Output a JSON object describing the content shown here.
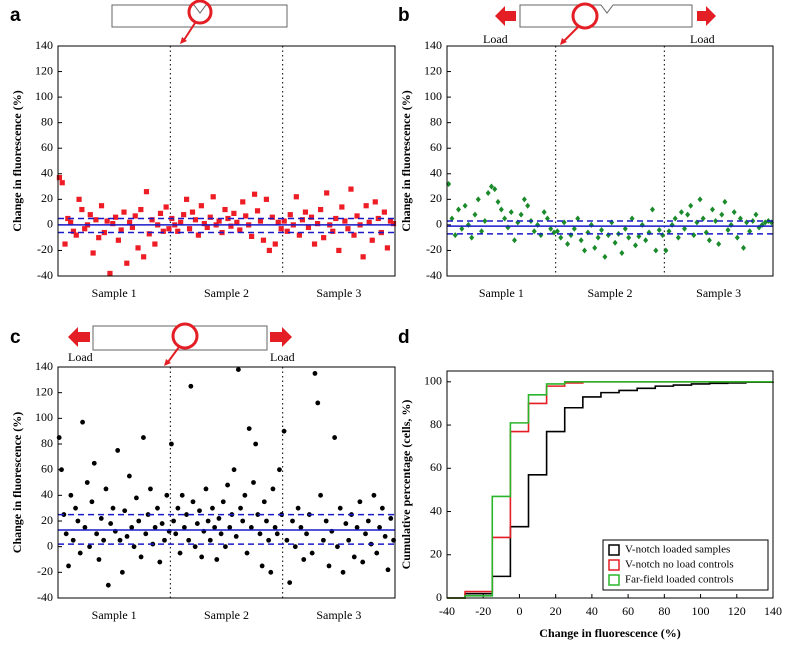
{
  "chart_data": [
    {
      "type": "scatter",
      "panel": "a",
      "ylabel": "Change in fluorescence (%)",
      "color": "#ee1c25",
      "marker": "square",
      "categories": [
        "Sample 1",
        "Sample 2",
        "Sample 3"
      ],
      "values": [
        [
          37,
          33,
          -15,
          5,
          2,
          -5,
          -8,
          20,
          12,
          -3,
          0,
          8,
          -22,
          4,
          -10,
          15,
          -6,
          3,
          -38,
          1,
          6,
          -12,
          -4,
          10,
          -30,
          2,
          -2,
          7,
          -18,
          12,
          -25,
          26,
          -7,
          4,
          -15,
          0,
          9,
          -5,
          14,
          -3
        ],
        [
          5,
          0,
          -5,
          2,
          8,
          20,
          -3,
          10,
          4,
          -8,
          15,
          1,
          -2,
          6,
          22,
          0,
          3,
          -6,
          12,
          5,
          -1,
          9,
          2,
          -4,
          18,
          7,
          0,
          -9,
          24,
          11,
          3,
          -12,
          20,
          -20,
          6,
          -15,
          2,
          -3
        ],
        [
          3,
          -5,
          8,
          0,
          22,
          -8,
          4,
          10,
          -2,
          6,
          -15,
          1,
          12,
          -10,
          25,
          0,
          -5,
          5,
          -20,
          14,
          3,
          -3,
          28,
          -8,
          7,
          0,
          -25,
          15,
          2,
          -12,
          18,
          5,
          -6,
          10,
          -18,
          3,
          1
        ]
      ],
      "mean_line": 0,
      "band_lines": [
        5,
        -6
      ],
      "ylim": [
        -40,
        140
      ],
      "yticks": [
        -40,
        -20,
        0,
        20,
        40,
        60,
        80,
        100,
        120,
        140
      ]
    },
    {
      "type": "scatter",
      "panel": "b",
      "ylabel": "Change in fluorescence (%)",
      "color": "#1a8a2a",
      "marker": "diamond",
      "annotations": [
        "Load",
        "Load"
      ],
      "categories": [
        "Sample 1",
        "Sample 2",
        "Sample 3"
      ],
      "values": [
        [
          32,
          5,
          -8,
          12,
          -3,
          15,
          0,
          -10,
          8,
          20,
          -5,
          3,
          25,
          30,
          28,
          18,
          12,
          5,
          -2,
          10,
          -12,
          2,
          8,
          20,
          15,
          3,
          -5,
          0,
          -8,
          10,
          5,
          -3,
          -6
        ],
        [
          -5,
          -10,
          2,
          -15,
          -8,
          -3,
          5,
          -12,
          -20,
          -6,
          0,
          -18,
          -10,
          -4,
          -25,
          -8,
          2,
          -14,
          -7,
          -22,
          -3,
          -10,
          5,
          -16,
          -9,
          0,
          -12,
          -6,
          12,
          -20,
          -4,
          -8
        ],
        [
          -20,
          -5,
          0,
          5,
          -10,
          10,
          -3,
          8,
          15,
          -8,
          2,
          20,
          5,
          -6,
          -12,
          12,
          3,
          -15,
          8,
          18,
          -4,
          0,
          10,
          -10,
          5,
          -18,
          2,
          -5,
          3,
          8,
          -2,
          0,
          2,
          3,
          2
        ]
      ],
      "mean_line": -1,
      "band_lines": [
        3,
        -7
      ],
      "ylim": [
        -40,
        140
      ],
      "yticks": [
        -40,
        -20,
        0,
        20,
        40,
        60,
        80,
        100,
        120,
        140
      ]
    },
    {
      "type": "scatter",
      "panel": "c",
      "ylabel": "Change in fluorescence (%)",
      "color": "#000000",
      "marker": "circle",
      "annotations": [
        "Load",
        "Load"
      ],
      "categories": [
        "Sample 1",
        "Sample 2",
        "Sample 3"
      ],
      "values": [
        [
          85,
          60,
          25,
          10,
          -15,
          40,
          5,
          30,
          20,
          -5,
          97,
          15,
          50,
          0,
          35,
          65,
          10,
          -10,
          22,
          5,
          45,
          -30,
          18,
          30,
          12,
          75,
          5,
          -20,
          28,
          8,
          55,
          15,
          0,
          38,
          20,
          -8,
          85,
          10,
          25,
          45,
          2,
          15,
          30,
          -12,
          18,
          5,
          40,
          12
        ],
        [
          80,
          20,
          10,
          30,
          -5,
          40,
          15,
          25,
          5,
          125,
          35,
          0,
          18,
          28,
          -8,
          12,
          45,
          20,
          5,
          30,
          15,
          -10,
          22,
          10,
          35,
          0,
          48,
          15,
          25,
          60,
          8,
          138,
          30,
          20,
          40,
          -5,
          92,
          15,
          50,
          80,
          25,
          10,
          -15,
          35,
          20,
          5,
          -20,
          45,
          15,
          10,
          60,
          25
        ],
        [
          90,
          5,
          -28,
          20,
          0,
          30,
          15,
          -10,
          10,
          25,
          -5,
          135,
          112,
          40,
          5,
          20,
          -15,
          12,
          85,
          0,
          30,
          -20,
          18,
          5,
          25,
          -8,
          15,
          35,
          -12,
          10,
          20,
          2,
          40,
          -5,
          15,
          30,
          8,
          -18,
          22,
          5
        ]
      ],
      "mean_line": 13,
      "band_lines": [
        25,
        2
      ],
      "ylim": [
        -40,
        140
      ],
      "yticks": [
        -40,
        -20,
        0,
        20,
        40,
        60,
        80,
        100,
        120,
        140
      ]
    },
    {
      "type": "step",
      "panel": "d",
      "ylabel": "Cumulative percentage (cells, %)",
      "xlabel": "Change in fluorescence (%)",
      "x": [
        -40,
        -30,
        -15,
        -5,
        5,
        15,
        25,
        35,
        45,
        55,
        65,
        75,
        85,
        95,
        105,
        115,
        125,
        140
      ],
      "series": [
        {
          "name": "V-notch loaded samples",
          "color": "#000000",
          "values": [
            0,
            2,
            10,
            33,
            57,
            77,
            88,
            93,
            95,
            96,
            97,
            98,
            98.5,
            99,
            99.3,
            99.5,
            99.8,
            100
          ]
        },
        {
          "name": "V-notch no load controls",
          "color": "#e31e24",
          "values": [
            0,
            3,
            28,
            77,
            90,
            98,
            99.5,
            100,
            100,
            100,
            100,
            100,
            100,
            100,
            100,
            100,
            100,
            100
          ]
        },
        {
          "name": "Far-field loaded controls",
          "color": "#2bb52b",
          "values": [
            0,
            1,
            47,
            81,
            94,
            99,
            100,
            100,
            100,
            100,
            100,
            100,
            100,
            100,
            100,
            100,
            100,
            100
          ]
        }
      ],
      "legend": "lower right",
      "xlim": [
        -40,
        140
      ],
      "xticks": [
        -40,
        -20,
        0,
        20,
        40,
        60,
        80,
        100,
        120,
        140
      ],
      "ylim": [
        0,
        105
      ],
      "yticks": [
        0,
        20,
        40,
        60,
        80,
        100
      ]
    }
  ]
}
